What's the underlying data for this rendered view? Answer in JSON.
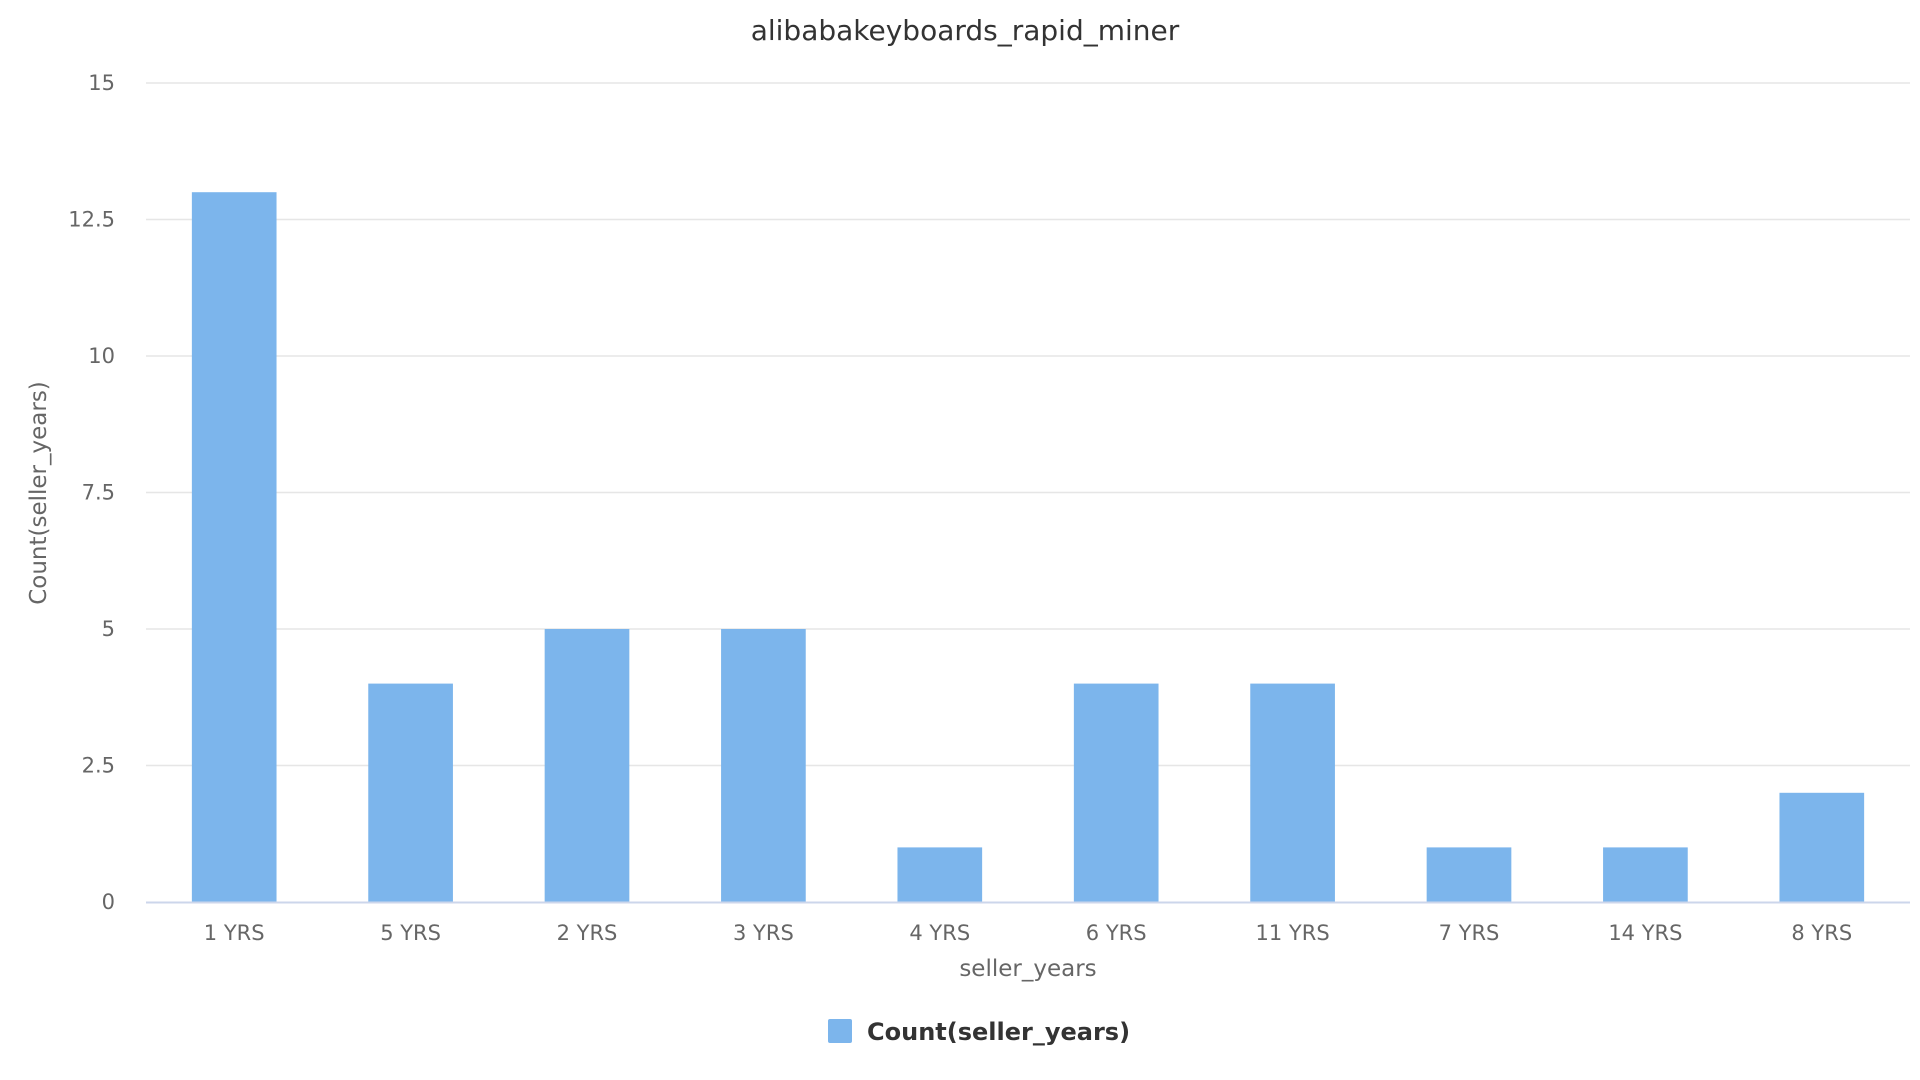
{
  "colors": {
    "bar": "#7cb5ec",
    "grid": "#e6e6e6",
    "axis": "#ccd6eb"
  },
  "chart_data": {
    "type": "bar",
    "title": "alibabakeyboards_rapid_miner",
    "xlabel": "seller_years",
    "ylabel": "Count(seller_years)",
    "categories": [
      "1 YRS",
      "5 YRS",
      "2 YRS",
      "3 YRS",
      "4 YRS",
      "6 YRS",
      "11 YRS",
      "7 YRS",
      "14 YRS",
      "8 YRS"
    ],
    "series": [
      {
        "name": "Count(seller_years)",
        "values": [
          13,
          4,
          5,
          5,
          1,
          4,
          4,
          1,
          1,
          2
        ]
      }
    ],
    "ylim": [
      0,
      15
    ],
    "yticks": [
      "0",
      "2.5",
      "5",
      "7.5",
      "10",
      "12.5",
      "15"
    ],
    "grid": true,
    "legend_position": "bottom-center"
  }
}
